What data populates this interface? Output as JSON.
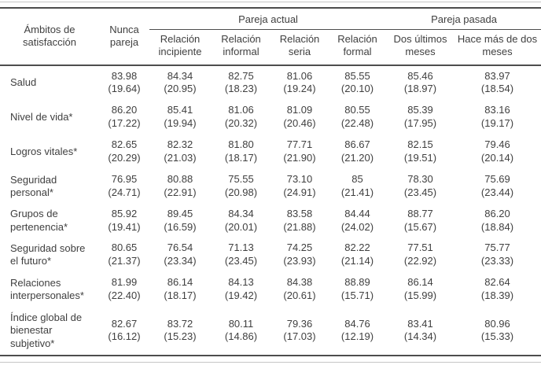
{
  "table": {
    "row_header": "Ámbitos de satisfacción",
    "columns": [
      "Nunca pareja",
      "Relación incipiente",
      "Relación informal",
      "Relación seria",
      "Relación formal",
      "Dos últimos meses",
      "Hace más de dos meses"
    ],
    "groups": [
      {
        "label": "Pareja actual",
        "span": 4
      },
      {
        "label": "Pareja pasada",
        "span": 2
      }
    ],
    "rows": [
      {
        "label": "Salud",
        "cells": [
          [
            "83.98",
            "(19.64)"
          ],
          [
            "84.34",
            "(20.95)"
          ],
          [
            "82.75",
            "(18.23)"
          ],
          [
            "81.06",
            "(19.24)"
          ],
          [
            "85.55",
            "(20.10)"
          ],
          [
            "85.46",
            "(18.97)"
          ],
          [
            "83.97",
            "(18.54)"
          ]
        ]
      },
      {
        "label": "Nivel de vida*",
        "cells": [
          [
            "86.20",
            "(17.22)"
          ],
          [
            "85.41",
            "(19.94)"
          ],
          [
            "81.06",
            "(20.32)"
          ],
          [
            "81.09",
            "(20.46)"
          ],
          [
            "80.55",
            "(22.48)"
          ],
          [
            "85.39",
            "(17.95)"
          ],
          [
            "83.16",
            "(19.17)"
          ]
        ]
      },
      {
        "label": "Logros vitales*",
        "cells": [
          [
            "82.65",
            "(20.29)"
          ],
          [
            "82.32",
            "(21.03)"
          ],
          [
            "81.80",
            "(18.17)"
          ],
          [
            "77.71",
            "(21.90)"
          ],
          [
            "86.67",
            "(21.20)"
          ],
          [
            "82.15",
            "(19.51)"
          ],
          [
            "79.46",
            "(20.14)"
          ]
        ]
      },
      {
        "label": "Seguridad personal*",
        "cells": [
          [
            "76.95",
            "(24.71)"
          ],
          [
            "80.88",
            "(22.91)"
          ],
          [
            "75.55",
            "(20.98)"
          ],
          [
            "73.10",
            "(24.91)"
          ],
          [
            "85",
            "(21.41)"
          ],
          [
            "78.30",
            "(23.45)"
          ],
          [
            "75.69",
            "(23.44)"
          ]
        ]
      },
      {
        "label": "Grupos de pertenencia*",
        "cells": [
          [
            "85.92",
            "(19.41)"
          ],
          [
            "89.45",
            "(16.59)"
          ],
          [
            "84.34",
            "(20.01)"
          ],
          [
            "83.58",
            "(21.88)"
          ],
          [
            "84.44",
            "(24.02)"
          ],
          [
            "88.77",
            "(15.67)"
          ],
          [
            "86.20",
            "(18.84)"
          ]
        ]
      },
      {
        "label": "Seguridad sobre el futuro*",
        "cells": [
          [
            "80.65",
            "(21.37)"
          ],
          [
            "76.54",
            "(23.34)"
          ],
          [
            "71.13",
            "(23.45)"
          ],
          [
            "74.25",
            "(23.93)"
          ],
          [
            "82.22",
            "(21.14)"
          ],
          [
            "77.51",
            "(22.92)"
          ],
          [
            "75.77",
            "(23.33)"
          ]
        ]
      },
      {
        "label": "Relaciones interpersonales*",
        "cells": [
          [
            "81.99",
            "(22.40)"
          ],
          [
            "86.14",
            "(18.17)"
          ],
          [
            "84.13",
            "(19.42)"
          ],
          [
            "84.38",
            "(20.61)"
          ],
          [
            "88.89",
            "(15.71)"
          ],
          [
            "86.14",
            "(15.99)"
          ],
          [
            "82.64",
            "(18.39)"
          ]
        ]
      },
      {
        "label": "Índice global de bienestar subjetivo*",
        "cells": [
          [
            "82.67",
            "(16.12)"
          ],
          [
            "83.72",
            "(15.23)"
          ],
          [
            "80.11",
            "(14.86)"
          ],
          [
            "79.36",
            "(17.03)"
          ],
          [
            "84.76",
            "(12.19)"
          ],
          [
            "83.41",
            "(14.34)"
          ],
          [
            "80.96",
            "(15.33)"
          ]
        ]
      }
    ]
  },
  "colors": {
    "text": "#3f3f3f",
    "rule_dark": "#4d4d4d",
    "rule_light": "#c6c6c6"
  }
}
